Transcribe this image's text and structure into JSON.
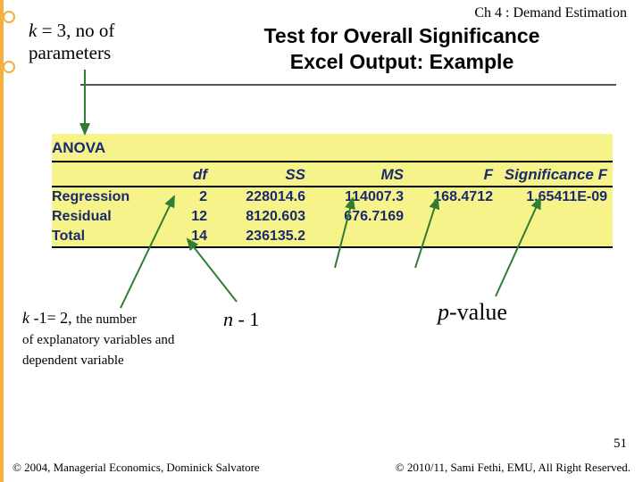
{
  "chapter": "Ch 4 : Demand Estimation",
  "title_line1": "Test for Overall Significance",
  "title_line2": "Excel Output: Example",
  "annot_k": {
    "pre": "k",
    "rest": " = 3, no of",
    "line2": "parameters"
  },
  "anova": {
    "title": "ANOVA",
    "headers": [
      "",
      "df",
      "SS",
      "MS",
      "F",
      "Significance F"
    ],
    "rows": [
      {
        "label": "Regression",
        "df": "2",
        "ss": "228014.6",
        "ms": "114007.3",
        "f": "168.4712",
        "sigf": "1.65411E-09"
      },
      {
        "label": "Residual",
        "df": "12",
        "ss": "8120.603",
        "ms": "676.7169",
        "f": "",
        "sigf": ""
      },
      {
        "label": "Total",
        "df": "14",
        "ss": "236135.2",
        "ms": "",
        "f": "",
        "sigf": ""
      }
    ],
    "colors": {
      "highlight": "#f6f38a",
      "rule": "#000000",
      "text": "#1a2a6c"
    }
  },
  "annot_k2": {
    "line1a": "k",
    "line1b": " -1= 2, ",
    "line1c": "the number",
    "rest": "of explanatory variables and dependent variable"
  },
  "annot_n1": {
    "it": "n",
    "rest": " - 1"
  },
  "annot_pv": {
    "it": "p",
    "rest": "-value"
  },
  "slidenum": "51",
  "foot_left": "© 2004,  Managerial Economics, Dominick Salvatore",
  "foot_right": "© 2010/11, Sami Fethi, EMU, All Right Reserved.",
  "accent": {
    "bar_color": "#f5b042",
    "dot_border": "#f5b042",
    "dot_fill": "#ffffff",
    "dot_tops": [
      12,
      68
    ]
  },
  "arrows": {
    "color": "#2e7d32"
  }
}
